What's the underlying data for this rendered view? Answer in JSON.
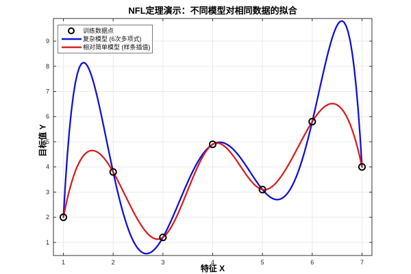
{
  "figure": {
    "background": "#ffffff"
  },
  "chart_data": {
    "type": "line",
    "title": "NFL定理演示：不同模型对相同数据的拟合",
    "xlabel": "特征 X",
    "ylabel": "目标值 Y",
    "xlim": [
      0.8,
      7.2
    ],
    "ylim": [
      0.48,
      9.9
    ],
    "xticks": [
      1,
      2,
      3,
      4,
      5,
      6,
      7
    ],
    "yticks": [
      1,
      2,
      3,
      4,
      5,
      6,
      7,
      8,
      9
    ],
    "grid": true,
    "legend_position": "top-left",
    "axis_color": "#333333",
    "grid_color": "#EAEAEA",
    "tick_label_color": "#262626",
    "training_points": {
      "x": [
        1,
        2,
        3,
        4,
        5,
        6,
        7
      ],
      "y": [
        2,
        3.8,
        1.2,
        4.9,
        3.1,
        5.8,
        4
      ]
    },
    "series": [
      {
        "name": "训练数据点",
        "kind": "scatter",
        "marker": "open-circle",
        "color": "#000000"
      },
      {
        "name": "复杂模型 (6次多项式)",
        "kind": "line",
        "model": "degree-6-polynomial-interpolation",
        "color": "#1111D6"
      },
      {
        "name": "相对简单模型 (样条插值)",
        "kind": "line",
        "model": "cubic-spline-interpolation",
        "color": "#D62020"
      }
    ]
  }
}
